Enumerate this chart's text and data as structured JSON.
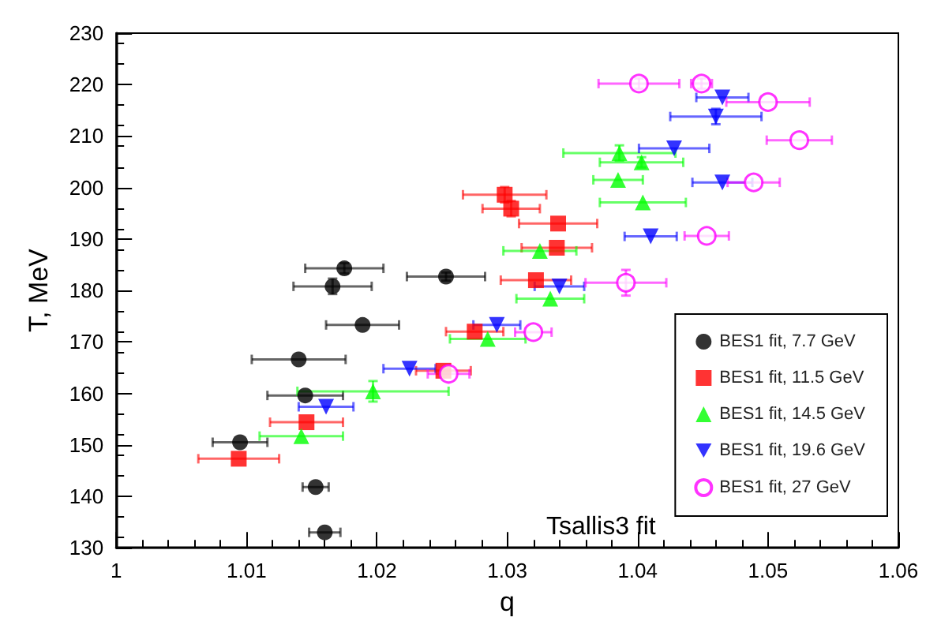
{
  "chart_data": {
    "type": "scatter",
    "xlabel": "q",
    "ylabel": "T, MeV",
    "xlim": [
      1,
      1.06
    ],
    "ylim": [
      130,
      230
    ],
    "xticks": [
      1,
      1.01,
      1.02,
      1.03,
      1.04,
      1.05,
      1.06
    ],
    "yticks": [
      130,
      140,
      150,
      160,
      170,
      180,
      190,
      200,
      210,
      220,
      230
    ],
    "grid": false,
    "legend": "bottom right",
    "annotations": [
      "Tsallis3 fit"
    ],
    "series": [
      {
        "name": "BES1 fit, 7.7 GeV",
        "color": "#000000",
        "marker": "circle",
        "x": [
          1.0175,
          1.0253,
          1.0166,
          1.0189,
          1.014,
          1.0145,
          1.0095,
          1.0153,
          1.016
        ],
        "values": [
          184.3,
          182.7,
          180.8,
          173.3,
          166.6,
          159.6,
          150.5,
          141.8,
          133
        ],
        "xerrors": [
          0.003,
          0.003,
          0.003,
          0.0028,
          0.0036,
          0.0029,
          0.0021,
          0.001,
          0.0012
        ],
        "errors": [
          1,
          0.8,
          1.5,
          null,
          null,
          null,
          null,
          null,
          null
        ]
      },
      {
        "name": "BES1 fit, 11.5 GeV",
        "color": "#ff0000",
        "marker": "square",
        "x": [
          1.0094,
          1.0146,
          1.0251,
          1.0298,
          1.0303,
          1.0339,
          1.0338,
          1.0322,
          1.0275
        ],
        "values": [
          147.3,
          154.4,
          164.4,
          198.6,
          195.9,
          193,
          188.3,
          182,
          172
        ],
        "xerrors": [
          0.0031,
          0.0028,
          0.0021,
          0.0032,
          0.0022,
          0.003,
          0.0027,
          0.0027,
          0.0022
        ],
        "errors": [
          null,
          null,
          null,
          1.5,
          1.5,
          null,
          null,
          null,
          null
        ]
      },
      {
        "name": "BES1 fit, 14.5 GeV",
        "color": "#00ff00",
        "marker": "triangle",
        "x": [
          1.0142,
          1.0197,
          1.0285,
          1.0333,
          1.0325,
          1.0385,
          1.0404,
          1.0403,
          1.0386
        ],
        "values": [
          151.7,
          160.4,
          170.6,
          178.4,
          187.7,
          201.5,
          197.1,
          204.9,
          206.7
        ],
        "xerrors": [
          0.0032,
          0.0058,
          0.0029,
          0.0026,
          0.0028,
          0.0019,
          0.0033,
          0.0032,
          0.0043
        ],
        "errors": [
          null,
          2,
          null,
          null,
          null,
          null,
          null,
          1,
          1.5
        ]
      },
      {
        "name": "BES1 fit, 19.6 GeV",
        "color": "#0000ff",
        "marker": "triangle-down",
        "x": [
          1.0161,
          1.0225,
          1.0292,
          1.034,
          1.041,
          1.0428,
          1.0465,
          1.046,
          1.0465
        ],
        "values": [
          157.4,
          164.8,
          173.3,
          180.8,
          190.5,
          207.6,
          201,
          213.8,
          217.5
        ],
        "xerrors": [
          0.0021,
          0.002,
          0.0018,
          0.0019,
          0.002,
          0.0027,
          0.0023,
          0.0035,
          0.002
        ],
        "errors": [
          null,
          null,
          null,
          null,
          null,
          null,
          null,
          1.5,
          null
        ]
      },
      {
        "name": "BES1 fit, 27 GeV",
        "color": "#ff00ff",
        "marker": "circle-open",
        "x": [
          1.0255,
          1.032,
          1.0391,
          1.0453,
          1.0489,
          1.0524,
          1.05,
          1.0401,
          1.0449
        ],
        "values": [
          163.8,
          171.9,
          181.5,
          190.6,
          201,
          209.2,
          216.6,
          220.2,
          220.2
        ],
        "xerrors": [
          0.0016,
          0.0014,
          0.0031,
          0.0017,
          0.002,
          0.0025,
          0.0032,
          0.0031,
          0.0008
        ],
        "errors": [
          null,
          null,
          2.5,
          null,
          null,
          null,
          null,
          1,
          1
        ]
      }
    ]
  }
}
